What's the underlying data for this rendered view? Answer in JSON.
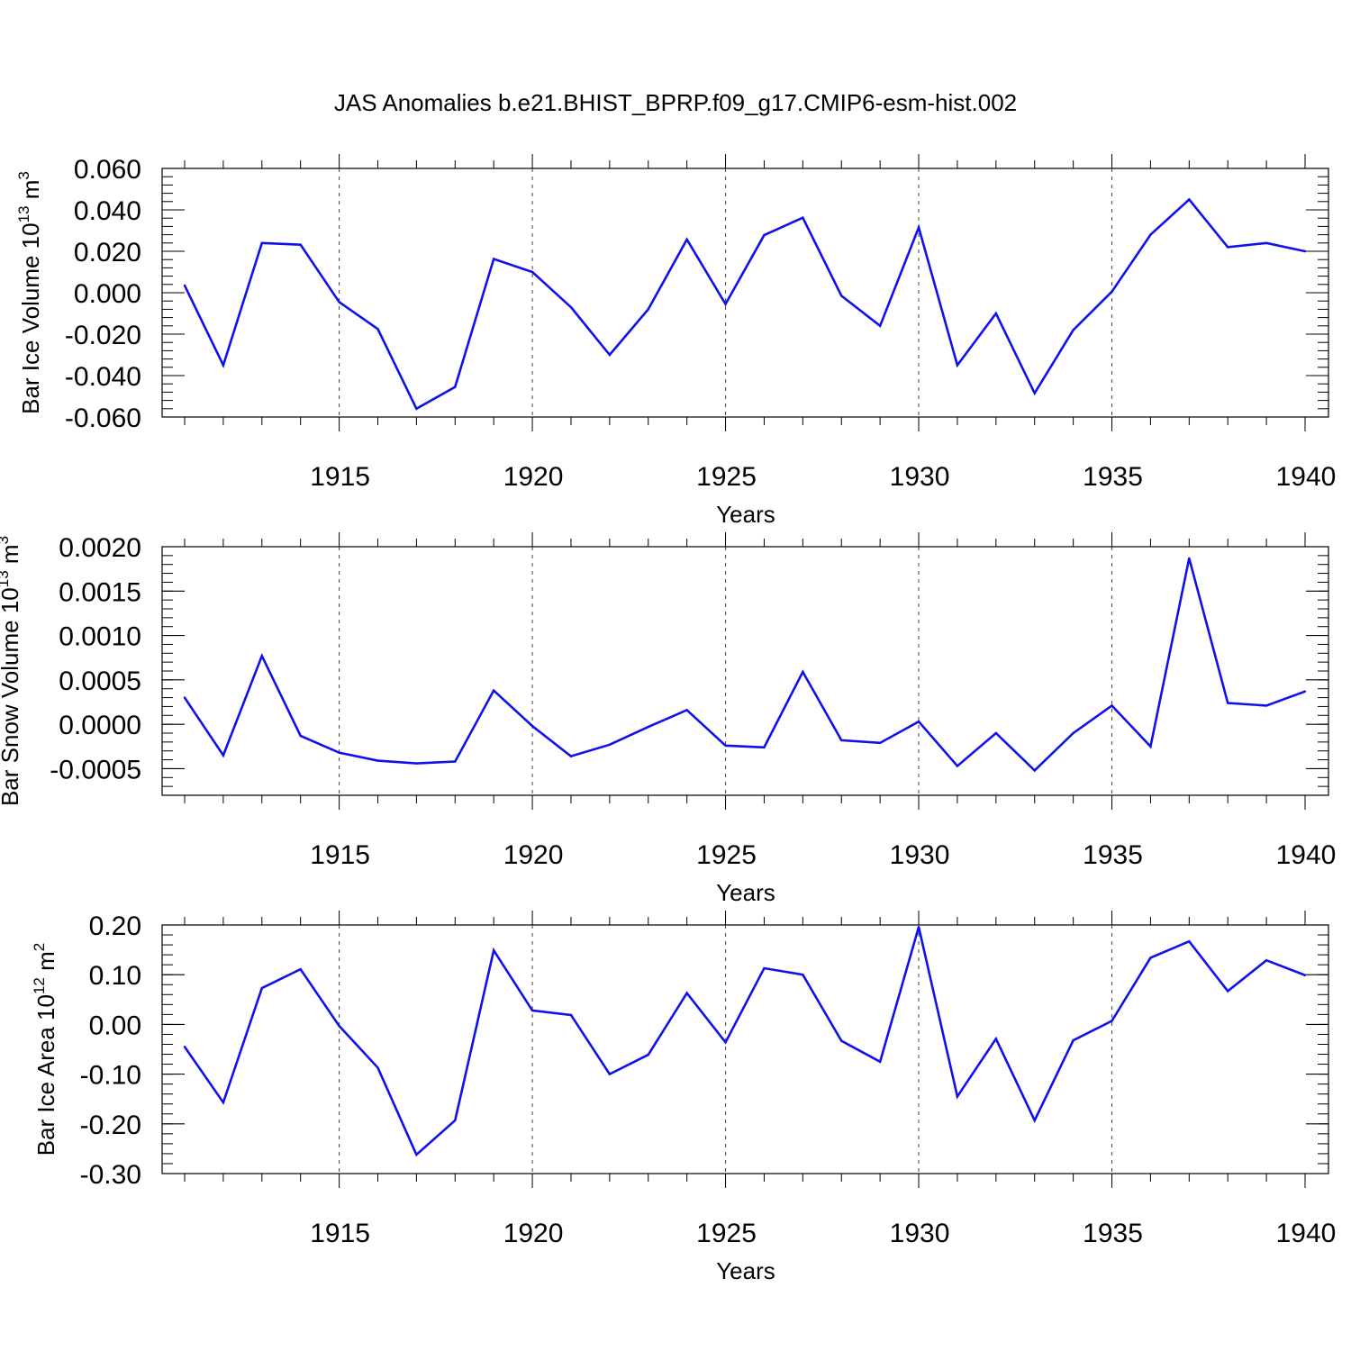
{
  "title": "JAS Anomalies b.e21.BHIST_BPRP.f09_g17.CMIP6-esm-hist.002",
  "colors": {
    "line": "#1010ee",
    "axis": "#000000",
    "grid": "#444444"
  },
  "chart_data": [
    {
      "type": "line",
      "series": [
        {
          "name": "Bar Ice Volume",
          "values": [
            0.0035,
            -0.035,
            0.024,
            0.0232,
            -0.0045,
            -0.0175,
            -0.056,
            -0.0455,
            0.0163,
            0.01,
            -0.007,
            -0.03,
            -0.008,
            0.0257,
            -0.0055,
            0.0278,
            0.0362,
            -0.0015,
            -0.016,
            0.0315,
            -0.035,
            -0.01,
            -0.0485,
            -0.018,
            0.0005,
            0.028,
            0.045,
            0.022,
            0.024,
            0.02
          ]
        }
      ],
      "x": [
        1911,
        1912,
        1913,
        1914,
        1915,
        1916,
        1917,
        1918,
        1919,
        1920,
        1921,
        1922,
        1923,
        1924,
        1925,
        1926,
        1927,
        1928,
        1929,
        1930,
        1931,
        1932,
        1933,
        1934,
        1935,
        1936,
        1937,
        1938,
        1939,
        1940
      ],
      "xlabel": "Years",
      "ylabel_main": "Bar Ice Volume 10",
      "ylabel_exp": "13",
      "ylabel_unit": " m",
      "ylabel_unit_exp": "3",
      "xlim": [
        1911,
        1940
      ],
      "ylim": [
        -0.06,
        0.06
      ],
      "yticks": [
        -0.06,
        -0.04,
        -0.02,
        0.0,
        0.02,
        0.04,
        0.06
      ],
      "ytick_labels": [
        "-0.060",
        "-0.040",
        "-0.020",
        "0.000",
        "0.020",
        "0.040",
        "0.060"
      ],
      "xticks": [
        1915,
        1920,
        1925,
        1930,
        1935,
        1940
      ],
      "xtick_labels": [
        "1915",
        "1920",
        "1925",
        "1930",
        "1935",
        "1940"
      ]
    },
    {
      "type": "line",
      "series": [
        {
          "name": "Bar Snow Volume",
          "values": [
            0.0003,
            -0.00035,
            0.00077,
            -0.00013,
            -0.00032,
            -0.00041,
            -0.00044,
            -0.00042,
            0.00038,
            -2e-05,
            -0.00036,
            -0.00023,
            -3e-05,
            0.00016,
            -0.00024,
            -0.00026,
            0.00059,
            -0.00018,
            -0.00021,
            3e-05,
            -0.00047,
            -0.0001,
            -0.00052,
            -0.0001,
            0.00021,
            -0.00025,
            0.00187,
            0.00024,
            0.00021,
            0.00037
          ]
        }
      ],
      "x": [
        1911,
        1912,
        1913,
        1914,
        1915,
        1916,
        1917,
        1918,
        1919,
        1920,
        1921,
        1922,
        1923,
        1924,
        1925,
        1926,
        1927,
        1928,
        1929,
        1930,
        1931,
        1932,
        1933,
        1934,
        1935,
        1936,
        1937,
        1938,
        1939,
        1940
      ],
      "xlabel": "Years",
      "ylabel_main": "Bar Snow Volume 10",
      "ylabel_exp": "13",
      "ylabel_unit": " m",
      "ylabel_unit_exp": "3",
      "xlim": [
        1911,
        1940
      ],
      "ylim": [
        -0.0008,
        0.002
      ],
      "yticks": [
        -0.0005,
        0.0,
        0.0005,
        0.001,
        0.0015,
        0.002
      ],
      "ytick_labels": [
        "-0.0005",
        "0.0000",
        "0.0005",
        "0.0010",
        "0.0015",
        "0.0020"
      ],
      "xticks": [
        1915,
        1920,
        1925,
        1930,
        1935,
        1940
      ],
      "xtick_labels": [
        "1915",
        "1920",
        "1925",
        "1930",
        "1935",
        "1940"
      ]
    },
    {
      "type": "line",
      "series": [
        {
          "name": "Bar Ice Area",
          "values": [
            -0.045,
            -0.157,
            0.073,
            0.111,
            -0.003,
            -0.087,
            -0.262,
            -0.193,
            0.149,
            0.028,
            0.019,
            -0.1,
            -0.061,
            0.063,
            -0.036,
            0.113,
            0.1,
            -0.033,
            -0.075,
            0.196,
            -0.145,
            -0.029,
            -0.193,
            -0.032,
            0.007,
            0.134,
            0.167,
            0.067,
            0.129,
            0.099
          ]
        }
      ],
      "x": [
        1911,
        1912,
        1913,
        1914,
        1915,
        1916,
        1917,
        1918,
        1919,
        1920,
        1921,
        1922,
        1923,
        1924,
        1925,
        1926,
        1927,
        1928,
        1929,
        1930,
        1931,
        1932,
        1933,
        1934,
        1935,
        1936,
        1937,
        1938,
        1939,
        1940
      ],
      "xlabel": "Years",
      "ylabel_main": "Bar Ice Area 10",
      "ylabel_exp": "12",
      "ylabel_unit": " m",
      "ylabel_unit_exp": "2",
      "xlim": [
        1911,
        1940
      ],
      "ylim": [
        -0.3,
        0.2
      ],
      "yticks": [
        -0.3,
        -0.2,
        -0.1,
        0.0,
        0.1,
        0.2
      ],
      "ytick_labels": [
        "-0.30",
        "-0.20",
        "-0.10",
        "0.00",
        "0.10",
        "0.20"
      ],
      "xticks": [
        1915,
        1920,
        1925,
        1930,
        1935,
        1940
      ],
      "xtick_labels": [
        "1915",
        "1920",
        "1925",
        "1930",
        "1935",
        "1940"
      ]
    }
  ]
}
